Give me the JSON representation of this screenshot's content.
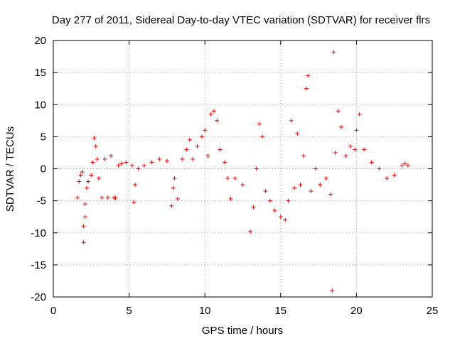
{
  "chart_data": {
    "type": "scatter",
    "title": "Day 277 of 2011, Sidereal Day-to-day VTEC variation (SDTVAR) for receiver flrs",
    "xlabel": "GPS time / hours",
    "ylabel": "SDTVAR / TECUs",
    "xlim": [
      0,
      25
    ],
    "ylim": [
      -20,
      20
    ],
    "xticks": [
      "0",
      "5",
      "10",
      "15",
      "20",
      "25"
    ],
    "yticks": [
      "20",
      "15",
      "10",
      "5",
      "0",
      "-5",
      "-10",
      "-15",
      "-20"
    ],
    "grid": true,
    "marker": "+",
    "color": "#ff0000",
    "series": [
      {
        "points": [
          [
            1.6,
            -4.5
          ],
          [
            1.7,
            -2.0
          ],
          [
            1.8,
            -1.0
          ],
          [
            1.9,
            -0.5
          ],
          [
            2.0,
            -11.5
          ],
          [
            2.0,
            -9.0
          ],
          [
            2.1,
            -7.5
          ],
          [
            2.1,
            -5.5
          ],
          [
            2.2,
            -3.0
          ],
          [
            2.3,
            -2.0
          ],
          [
            2.5,
            -1.0
          ],
          [
            2.6,
            1.0
          ],
          [
            2.7,
            4.8
          ],
          [
            2.8,
            3.5
          ],
          [
            2.9,
            1.5
          ],
          [
            3.0,
            -1.5
          ],
          [
            3.2,
            -4.5
          ],
          [
            3.4,
            1.5
          ],
          [
            3.6,
            -4.5
          ],
          [
            3.8,
            2.0
          ],
          [
            4.0,
            -4.5
          ],
          [
            4.1,
            -4.6
          ],
          [
            4.3,
            0.5
          ],
          [
            4.5,
            0.8
          ],
          [
            4.8,
            1.0
          ],
          [
            5.2,
            0.5
          ],
          [
            5.3,
            -5.2
          ],
          [
            5.4,
            -2.5
          ],
          [
            5.6,
            0.0
          ],
          [
            6.0,
            0.5
          ],
          [
            6.5,
            1.0
          ],
          [
            7.0,
            1.5
          ],
          [
            7.5,
            1.2
          ],
          [
            7.8,
            -5.8
          ],
          [
            7.9,
            -3.0
          ],
          [
            8.0,
            -1.5
          ],
          [
            8.2,
            -4.7
          ],
          [
            8.5,
            1.5
          ],
          [
            8.8,
            3.0
          ],
          [
            9.0,
            4.5
          ],
          [
            9.2,
            1.5
          ],
          [
            9.5,
            3.5
          ],
          [
            9.8,
            5.0
          ],
          [
            10.0,
            6.0
          ],
          [
            10.2,
            2.0
          ],
          [
            10.4,
            8.5
          ],
          [
            10.6,
            9.0
          ],
          [
            10.8,
            7.5
          ],
          [
            11.0,
            3.0
          ],
          [
            11.3,
            1.0
          ],
          [
            11.5,
            -1.5
          ],
          [
            11.7,
            -4.7
          ],
          [
            12.0,
            -1.5
          ],
          [
            12.5,
            -2.5
          ],
          [
            13.0,
            -9.8
          ],
          [
            13.2,
            -6.0
          ],
          [
            13.4,
            0.0
          ],
          [
            13.6,
            7.0
          ],
          [
            13.8,
            5.0
          ],
          [
            14.0,
            -3.5
          ],
          [
            14.3,
            -5.0
          ],
          [
            14.6,
            -6.5
          ],
          [
            15.0,
            -7.5
          ],
          [
            15.3,
            -8.0
          ],
          [
            15.5,
            -5.0
          ],
          [
            15.7,
            7.5
          ],
          [
            15.9,
            -3.0
          ],
          [
            16.1,
            5.5
          ],
          [
            16.3,
            -2.5
          ],
          [
            16.5,
            2.0
          ],
          [
            16.7,
            12.5
          ],
          [
            16.8,
            14.5
          ],
          [
            17.0,
            -3.5
          ],
          [
            17.3,
            0.0
          ],
          [
            17.6,
            -2.5
          ],
          [
            18.0,
            -1.5
          ],
          [
            18.3,
            -4.0
          ],
          [
            18.4,
            -19.0
          ],
          [
            18.5,
            18.2
          ],
          [
            18.6,
            2.5
          ],
          [
            18.8,
            9.0
          ],
          [
            19.0,
            6.5
          ],
          [
            19.3,
            2.0
          ],
          [
            19.6,
            3.5
          ],
          [
            19.9,
            3.0
          ],
          [
            20.0,
            6.0
          ],
          [
            20.2,
            8.5
          ],
          [
            20.5,
            3.0
          ],
          [
            21.0,
            1.0
          ],
          [
            21.5,
            0.0
          ],
          [
            22.0,
            -1.5
          ],
          [
            22.5,
            -1.0
          ],
          [
            23.0,
            0.5
          ],
          [
            23.2,
            0.8
          ],
          [
            23.4,
            0.5
          ]
        ]
      }
    ]
  }
}
